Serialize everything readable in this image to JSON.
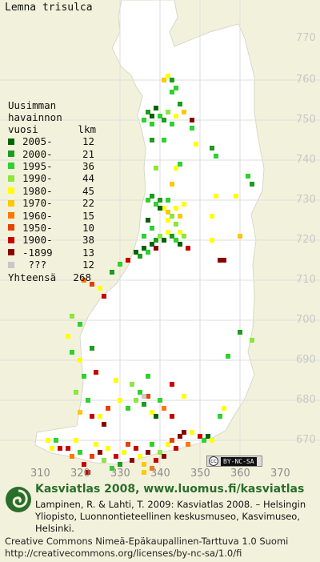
{
  "map": {
    "species": "Lemna trisulca",
    "y_ticks": [
      "770",
      "760",
      "750",
      "740",
      "730",
      "720",
      "710",
      "700",
      "690",
      "680",
      "670"
    ],
    "x_ticks": [
      "310",
      "320",
      "330",
      "340",
      "350",
      "360",
      "370"
    ],
    "license_badge": "BY-NC-SA",
    "colors": {
      "land": "#ffffff",
      "sea": "#f2f2dc",
      "grid": "#d2d2d2",
      "c2005": "#006400",
      "c2000": "#1f9b1f",
      "c1995": "#2dd22d",
      "c1990": "#8ce63c",
      "c1980": "#ffff00",
      "c1970": "#ffc800",
      "c1960": "#ff7800",
      "c1950": "#e64100",
      "c1900": "#c80000",
      "c1899": "#8b0000",
      "cunknown": "#c8c8c8"
    },
    "points": [
      {
        "x": 317,
        "y": 668,
        "c": "c1900"
      },
      {
        "x": 318,
        "y": 666,
        "c": "c1960"
      },
      {
        "x": 319,
        "y": 670,
        "c": "c1980"
      },
      {
        "x": 320,
        "y": 667,
        "c": "c1995"
      },
      {
        "x": 321,
        "y": 664,
        "c": "c1900"
      },
      {
        "x": 323,
        "y": 666,
        "c": "c1950"
      },
      {
        "x": 324,
        "y": 669,
        "c": "c1980"
      },
      {
        "x": 325,
        "y": 667,
        "c": "c1899"
      },
      {
        "x": 326,
        "y": 665,
        "c": "c1990"
      },
      {
        "x": 327,
        "y": 668,
        "c": "c1980"
      },
      {
        "x": 328,
        "y": 663,
        "c": "c1995"
      },
      {
        "x": 329,
        "y": 666,
        "c": "c1900"
      },
      {
        "x": 330,
        "y": 664,
        "c": "c2000"
      },
      {
        "x": 331,
        "y": 667,
        "c": "c1980"
      },
      {
        "x": 332,
        "y": 669,
        "c": "c1950"
      },
      {
        "x": 333,
        "y": 665,
        "c": "c1899"
      },
      {
        "x": 334,
        "y": 668,
        "c": "c1900"
      },
      {
        "x": 335,
        "y": 666,
        "c": "c1980"
      },
      {
        "x": 336,
        "y": 664,
        "c": "c1970"
      },
      {
        "x": 337,
        "y": 667,
        "c": "c1899"
      },
      {
        "x": 338,
        "y": 669,
        "c": "c1995"
      },
      {
        "x": 339,
        "y": 665,
        "c": "c1900"
      },
      {
        "x": 340,
        "y": 667,
        "c": "c1990"
      },
      {
        "x": 341,
        "y": 666,
        "c": "c1899"
      },
      {
        "x": 342,
        "y": 669,
        "c": "c1980"
      },
      {
        "x": 344,
        "y": 668,
        "c": "c1900"
      },
      {
        "x": 345,
        "y": 671,
        "c": "c1899"
      },
      {
        "x": 347,
        "y": 669,
        "c": "c1960"
      },
      {
        "x": 348,
        "y": 672,
        "c": "c1980"
      },
      {
        "x": 350,
        "y": 671,
        "c": "c1900"
      },
      {
        "x": 351,
        "y": 670,
        "c": "c1995"
      },
      {
        "x": 352,
        "y": 671,
        "c": "c2005"
      },
      {
        "x": 353,
        "y": 670,
        "c": "c1980"
      },
      {
        "x": 346,
        "y": 672,
        "c": "c1899"
      },
      {
        "x": 343,
        "y": 670,
        "c": "c1950"
      },
      {
        "x": 336,
        "y": 662,
        "c": "c1970"
      },
      {
        "x": 322,
        "y": 662,
        "c": "c1900"
      },
      {
        "x": 338,
        "y": 663,
        "c": "c1960"
      },
      {
        "x": 313,
        "y": 668,
        "c": "c1980"
      },
      {
        "x": 314,
        "y": 670,
        "c": "c1995"
      },
      {
        "x": 312,
        "y": 670,
        "c": "c1980"
      },
      {
        "x": 315,
        "y": 668,
        "c": "c1900"
      },
      {
        "x": 322,
        "y": 680,
        "c": "c1995"
      },
      {
        "x": 323,
        "y": 676,
        "c": "c1900"
      },
      {
        "x": 325,
        "y": 676,
        "c": "c1980"
      },
      {
        "x": 327,
        "y": 678,
        "c": "c1950"
      },
      {
        "x": 330,
        "y": 680,
        "c": "c1980"
      },
      {
        "x": 332,
        "y": 678,
        "c": "c1995"
      },
      {
        "x": 334,
        "y": 680,
        "c": "c1990"
      },
      {
        "x": 336,
        "y": 679,
        "c": "c2000"
      },
      {
        "x": 338,
        "y": 677,
        "c": "c1980"
      },
      {
        "x": 340,
        "y": 680,
        "c": "c1995"
      },
      {
        "x": 341,
        "y": 678,
        "c": "c1960"
      },
      {
        "x": 343,
        "y": 676,
        "c": "c1900"
      },
      {
        "x": 339,
        "y": 676,
        "c": "c2005"
      },
      {
        "x": 326,
        "y": 674,
        "c": "c1899"
      },
      {
        "x": 320,
        "y": 677,
        "c": "c1970"
      },
      {
        "x": 319,
        "y": 682,
        "c": "c1990"
      },
      {
        "x": 335,
        "y": 682,
        "c": "c1995"
      },
      {
        "x": 337,
        "y": 681,
        "c": "c1950"
      },
      {
        "x": 321,
        "y": 686,
        "c": "c1995"
      },
      {
        "x": 324,
        "y": 687,
        "c": "c1900"
      },
      {
        "x": 329,
        "y": 685,
        "c": "c1980"
      },
      {
        "x": 333,
        "y": 684,
        "c": "c1990"
      },
      {
        "x": 337,
        "y": 686,
        "c": "c1995"
      },
      {
        "x": 343,
        "y": 684,
        "c": "c1900"
      },
      {
        "x": 320,
        "y": 690,
        "c": "c1980"
      },
      {
        "x": 318,
        "y": 692,
        "c": "c1995"
      },
      {
        "x": 323,
        "y": 693,
        "c": "c2000"
      },
      {
        "x": 346,
        "y": 681,
        "c": "c1980"
      },
      {
        "x": 355,
        "y": 676,
        "c": "c1995"
      },
      {
        "x": 356,
        "y": 678,
        "c": "c1980"
      },
      {
        "x": 336,
        "y": 681,
        "c": "cunknown"
      },
      {
        "x": 318,
        "y": 701,
        "c": "c1990"
      },
      {
        "x": 320,
        "y": 699,
        "c": "c1995"
      },
      {
        "x": 317,
        "y": 696,
        "c": "c1980"
      },
      {
        "x": 357,
        "y": 691,
        "c": "c1995"
      },
      {
        "x": 360,
        "y": 697,
        "c": "c2000"
      },
      {
        "x": 363,
        "y": 695,
        "c": "c1990"
      },
      {
        "x": 321,
        "y": 710,
        "c": "c1960"
      },
      {
        "x": 323,
        "y": 709,
        "c": "c1950"
      },
      {
        "x": 325,
        "y": 708,
        "c": "c1980"
      },
      {
        "x": 326,
        "y": 706,
        "c": "c1900"
      },
      {
        "x": 328,
        "y": 712,
        "c": "c2000"
      },
      {
        "x": 330,
        "y": 714,
        "c": "c1995"
      },
      {
        "x": 332,
        "y": 715,
        "c": "c1900"
      },
      {
        "x": 334,
        "y": 717,
        "c": "c2005"
      },
      {
        "x": 335,
        "y": 716,
        "c": "c2000"
      },
      {
        "x": 336,
        "y": 718,
        "c": "c2005"
      },
      {
        "x": 337,
        "y": 717,
        "c": "c1995"
      },
      {
        "x": 338,
        "y": 719,
        "c": "c2005"
      },
      {
        "x": 339,
        "y": 720,
        "c": "c2000"
      },
      {
        "x": 340,
        "y": 721,
        "c": "c1990"
      },
      {
        "x": 341,
        "y": 720,
        "c": "c2005"
      },
      {
        "x": 342,
        "y": 722,
        "c": "c1980"
      },
      {
        "x": 343,
        "y": 721,
        "c": "c2000"
      },
      {
        "x": 344,
        "y": 720,
        "c": "c1995"
      },
      {
        "x": 345,
        "y": 719,
        "c": "c2005"
      },
      {
        "x": 345,
        "y": 722,
        "c": "c1980"
      },
      {
        "x": 344,
        "y": 724,
        "c": "c1990"
      },
      {
        "x": 338,
        "y": 723,
        "c": "c1995"
      },
      {
        "x": 339,
        "y": 718,
        "c": "c1899"
      },
      {
        "x": 336,
        "y": 721,
        "c": "c1995"
      },
      {
        "x": 337,
        "y": 725,
        "c": "c2005"
      },
      {
        "x": 342,
        "y": 725,
        "c": "c1980"
      },
      {
        "x": 346,
        "y": 721,
        "c": "c1990"
      },
      {
        "x": 347,
        "y": 718,
        "c": "c1900"
      },
      {
        "x": 353,
        "y": 720,
        "c": "c1980"
      },
      {
        "x": 355,
        "y": 715,
        "c": "c1899"
      },
      {
        "x": 356,
        "y": 715,
        "c": "c1899"
      },
      {
        "x": 360,
        "y": 721,
        "c": "c1970"
      },
      {
        "x": 337,
        "y": 730,
        "c": "c1995"
      },
      {
        "x": 338,
        "y": 731,
        "c": "c2000"
      },
      {
        "x": 339,
        "y": 729,
        "c": "c1995"
      },
      {
        "x": 340,
        "y": 730,
        "c": "c2000"
      },
      {
        "x": 341,
        "y": 728,
        "c": "c1980"
      },
      {
        "x": 342,
        "y": 727,
        "c": "c1970"
      },
      {
        "x": 343,
        "y": 726,
        "c": "c1990"
      },
      {
        "x": 344,
        "y": 728,
        "c": "c1980"
      },
      {
        "x": 345,
        "y": 726,
        "c": "c1970"
      },
      {
        "x": 342,
        "y": 730,
        "c": "c1995"
      },
      {
        "x": 340,
        "y": 728,
        "c": "c2005"
      },
      {
        "x": 346,
        "y": 729,
        "c": "c1980"
      },
      {
        "x": 353,
        "y": 726,
        "c": "c1980"
      },
      {
        "x": 354,
        "y": 731,
        "c": "c1980"
      },
      {
        "x": 362,
        "y": 736,
        "c": "c1995"
      },
      {
        "x": 363,
        "y": 734,
        "c": "c2000"
      },
      {
        "x": 359,
        "y": 731,
        "c": "c1980"
      },
      {
        "x": 343,
        "y": 734,
        "c": "c1970"
      },
      {
        "x": 344,
        "y": 738,
        "c": "c1980"
      },
      {
        "x": 345,
        "y": 739,
        "c": "c1995"
      },
      {
        "x": 339,
        "y": 738,
        "c": "c1990"
      },
      {
        "x": 338,
        "y": 745,
        "c": "c2000"
      },
      {
        "x": 341,
        "y": 745,
        "c": "c1995"
      },
      {
        "x": 348,
        "y": 748,
        "c": "c1995"
      },
      {
        "x": 349,
        "y": 744,
        "c": "c1980"
      },
      {
        "x": 354,
        "y": 741,
        "c": "c1995"
      },
      {
        "x": 353,
        "y": 743,
        "c": "c2000"
      },
      {
        "x": 336,
        "y": 750,
        "c": "c1995"
      },
      {
        "x": 337,
        "y": 752,
        "c": "c2000"
      },
      {
        "x": 338,
        "y": 751,
        "c": "c2005"
      },
      {
        "x": 339,
        "y": 753,
        "c": "c2005"
      },
      {
        "x": 340,
        "y": 751,
        "c": "c1995"
      },
      {
        "x": 341,
        "y": 750,
        "c": "c2000"
      },
      {
        "x": 342,
        "y": 752,
        "c": "c1990"
      },
      {
        "x": 343,
        "y": 749,
        "c": "c1995"
      },
      {
        "x": 344,
        "y": 751,
        "c": "c1980"
      },
      {
        "x": 345,
        "y": 754,
        "c": "c2000"
      },
      {
        "x": 346,
        "y": 752,
        "c": "c1970"
      },
      {
        "x": 348,
        "y": 750,
        "c": "c1899"
      },
      {
        "x": 338,
        "y": 749,
        "c": "c1995"
      },
      {
        "x": 341,
        "y": 760,
        "c": "c1970"
      },
      {
        "x": 342,
        "y": 761,
        "c": "c1980"
      },
      {
        "x": 343,
        "y": 760,
        "c": "c2000"
      },
      {
        "x": 343,
        "y": 757,
        "c": "c1995"
      },
      {
        "x": 344,
        "y": 758,
        "c": "c1995"
      }
    ]
  },
  "legend": {
    "title_line1": "Uusimman",
    "title_line2": "havainnon",
    "title_line3": "vuosi",
    "count_header": "lkm",
    "rows": [
      {
        "label": "2005-",
        "count": "12",
        "color": "#006400"
      },
      {
        "label": "2000-",
        "count": "21",
        "color": "#1f9b1f"
      },
      {
        "label": "1995-",
        "count": "36",
        "color": "#2dd22d"
      },
      {
        "label": "1990-",
        "count": "44",
        "color": "#8ce63c"
      },
      {
        "label": "1980-",
        "count": "45",
        "color": "#ffff00"
      },
      {
        "label": "1970-",
        "count": "22",
        "color": "#ffc800"
      },
      {
        "label": "1960-",
        "count": "15",
        "color": "#ff7800"
      },
      {
        "label": "1950-",
        "count": "10",
        "color": "#e64100"
      },
      {
        "label": "1900-",
        "count": "38",
        "color": "#c80000"
      },
      {
        "label": "-1899",
        "count": "13",
        "color": "#8b0000"
      },
      {
        "label": " ???",
        "count": "12",
        "color": "#c8c8c8"
      }
    ],
    "total_label": "Yhteensä",
    "total_count": "268"
  },
  "footer": {
    "site": "Kasviatlas 2008, www.luomus.fi/kasviatlas",
    "citation": "Lampinen, R. & Lahti, T. 2009: Kasviatlas 2008. – Helsingin Yliopisto, Luonnontieteellinen keskusmuseo, Kasvimuseo, Helsinki.",
    "license_line1": "Creative Commons Nimeä-Epäkaupallinen-Tarttuva 1.0 Suomi",
    "license_line2": "http://creativecommons.org/licenses/by-nc-sa/1.0/fi"
  }
}
